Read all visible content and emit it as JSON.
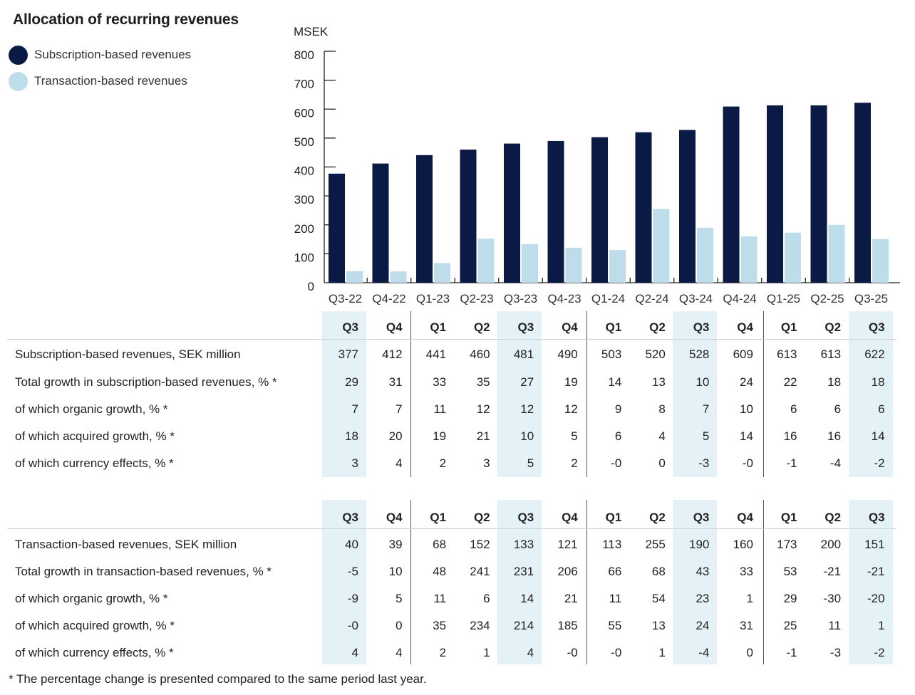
{
  "title": "Allocation of recurring revenues",
  "legend": [
    {
      "label": "Subscription-based revenues",
      "color": "#0a1a45"
    },
    {
      "label": "Transaction-based revenues",
      "color": "#bcdde9"
    }
  ],
  "chart_data": {
    "type": "bar",
    "title": "Allocation of recurring revenues",
    "ylabel": "MSEK",
    "xlabel": "",
    "categories": [
      "Q3-22",
      "Q4-22",
      "Q1-23",
      "Q2-23",
      "Q3-23",
      "Q4-23",
      "Q1-24",
      "Q2-24",
      "Q3-24",
      "Q4-24",
      "Q1-25",
      "Q2-25",
      "Q3-25"
    ],
    "series": [
      {
        "name": "Subscription-based revenues",
        "color": "#0a1a45",
        "values": [
          377,
          412,
          441,
          460,
          481,
          490,
          503,
          520,
          528,
          609,
          613,
          613,
          622
        ]
      },
      {
        "name": "Transaction-based revenues",
        "color": "#bcdde9",
        "values": [
          40,
          39,
          68,
          152,
          133,
          121,
          113,
          255,
          190,
          160,
          173,
          200,
          151
        ]
      }
    ],
    "ylim": [
      0,
      800
    ],
    "yticks": [
      0,
      100,
      200,
      300,
      400,
      500,
      600,
      700,
      800
    ],
    "grid": false,
    "legend_position": "top-left"
  },
  "tables": [
    {
      "header": [
        "Q3",
        "Q4",
        "Q1",
        "Q2",
        "Q3",
        "Q4",
        "Q1",
        "Q2",
        "Q3",
        "Q4",
        "Q1",
        "Q2",
        "Q3"
      ],
      "rows": [
        {
          "label": "Subscription-based revenues, SEK million",
          "values": [
            "377",
            "412",
            "441",
            "460",
            "481",
            "490",
            "503",
            "520",
            "528",
            "609",
            "613",
            "613",
            "622"
          ]
        },
        {
          "label": "Total growth in subscription-based revenues, % *",
          "values": [
            "29",
            "31",
            "33",
            "35",
            "27",
            "19",
            "14",
            "13",
            "10",
            "24",
            "22",
            "18",
            "18"
          ]
        },
        {
          "label": "of which organic growth, % *",
          "values": [
            "7",
            "7",
            "11",
            "12",
            "12",
            "12",
            "9",
            "8",
            "7",
            "10",
            "6",
            "6",
            "6"
          ]
        },
        {
          "label": "of which acquired growth, % *",
          "values": [
            "18",
            "20",
            "19",
            "21",
            "10",
            "5",
            "6",
            "4",
            "5",
            "14",
            "16",
            "16",
            "14"
          ]
        },
        {
          "label": "of which currency effects, % *",
          "values": [
            "3",
            "4",
            "2",
            "3",
            "5",
            "2",
            "-0",
            "0",
            "-3",
            "-0",
            "-1",
            "-4",
            "-2"
          ]
        }
      ]
    },
    {
      "header": [
        "Q3",
        "Q4",
        "Q1",
        "Q2",
        "Q3",
        "Q4",
        "Q1",
        "Q2",
        "Q3",
        "Q4",
        "Q1",
        "Q2",
        "Q3"
      ],
      "rows": [
        {
          "label": "Transaction-based revenues, SEK million",
          "values": [
            "40",
            "39",
            "68",
            "152",
            "133",
            "121",
            "113",
            "255",
            "190",
            "160",
            "173",
            "200",
            "151"
          ]
        },
        {
          "label": "Total growth in transaction-based revenues, % *",
          "values": [
            "-5",
            "10",
            "48",
            "241",
            "231",
            "206",
            "66",
            "68",
            "43",
            "33",
            "53",
            "-21",
            "-21"
          ]
        },
        {
          "label": "of which organic growth, % *",
          "values": [
            "-9",
            "5",
            "11",
            "6",
            "14",
            "21",
            "11",
            "54",
            "23",
            "1",
            "29",
            "-30",
            "-20"
          ]
        },
        {
          "label": "of which acquired growth, % *",
          "values": [
            "-0",
            "0",
            "35",
            "234",
            "214",
            "185",
            "55",
            "13",
            "24",
            "31",
            "25",
            "11",
            "1"
          ]
        },
        {
          "label": "of which currency effects, % *",
          "values": [
            "4",
            "4",
            "2",
            "1",
            "4",
            "-0",
            "-0",
            "1",
            "-4",
            "0",
            "-1",
            "-3",
            "-2"
          ]
        }
      ]
    }
  ],
  "footnote": "* The percentage change is presented compared to the same period last year."
}
